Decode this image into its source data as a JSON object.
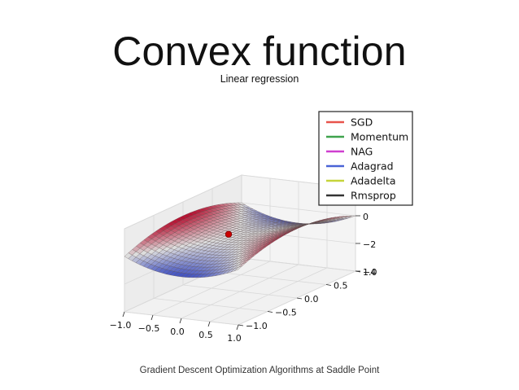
{
  "slide": {
    "title": "Convex function",
    "subtitle": "Linear regression",
    "caption": "Gradient Descent Optimization Algorithms at Saddle Point"
  },
  "chart_data": {
    "type": "surface3d",
    "surface": "z = x^2 - y^2",
    "surface_colormap": [
      "#3b4cc0",
      "#dddddd",
      "#b40426"
    ],
    "x_ticks": [
      "−1.0",
      "−0.5",
      "0.0",
      "0.5",
      "1.0"
    ],
    "y_ticks": [
      "−1.0",
      "−0.5",
      "0.0",
      "0.5",
      "1.0"
    ],
    "z_ticks": [
      "−4",
      "−2",
      "0"
    ],
    "xlim": [
      -1.0,
      1.0
    ],
    "ylim": [
      -1.0,
      1.0
    ],
    "zlim": [
      -4,
      2
    ],
    "start_point": {
      "x": -0.2,
      "y": 0.0,
      "color": "#cc0000"
    },
    "legend_position": "top-right",
    "legend": [
      {
        "name": "SGD",
        "color": "#e8534b"
      },
      {
        "name": "Momentum",
        "color": "#3fa34d"
      },
      {
        "name": "NAG",
        "color": "#cf3fd0"
      },
      {
        "name": "Adagrad",
        "color": "#4a63d6"
      },
      {
        "name": "Adadelta",
        "color": "#c6d43a"
      },
      {
        "name": "Rmsprop",
        "color": "#333333"
      }
    ],
    "grid": true
  }
}
